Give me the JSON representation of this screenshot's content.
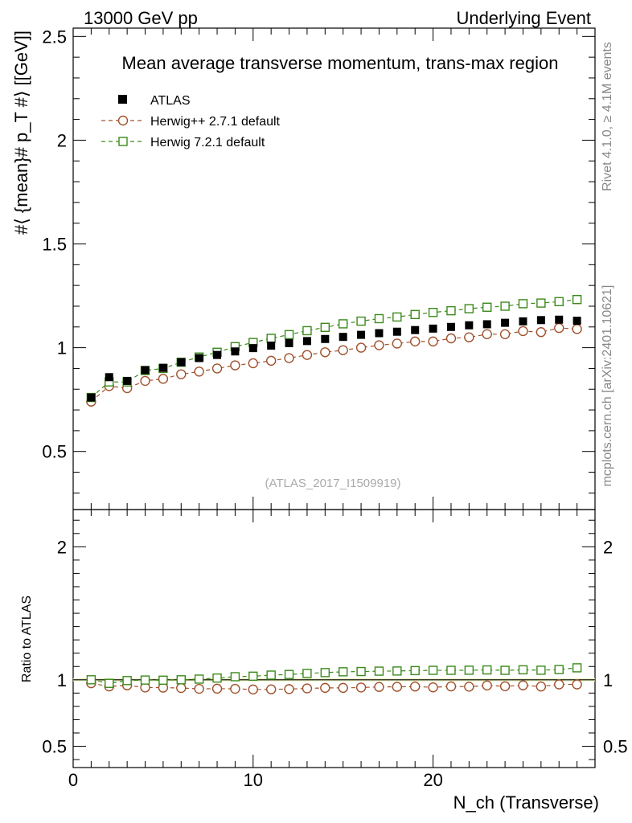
{
  "header": {
    "left": "13000 GeV pp",
    "right": "Underlying Event"
  },
  "side": {
    "rivet": "Rivet 4.1.0, ≥ 4.1M events",
    "mcplots": "mcplots.cern.ch [arXiv:2401.10621]"
  },
  "chart_data": [
    {
      "type": "scatter",
      "panel": "main",
      "title": "Mean average transverse momentum, trans-max region",
      "analysis_label": "(ATLAS_2017_I1509919)",
      "ylabel": "#⟨ {mean}# p_T #⟩ [[GeV]]",
      "xlim": [
        0,
        29
      ],
      "ylim": [
        0.22,
        2.54
      ],
      "yticks": [
        0.5,
        1,
        1.5,
        2,
        2.5
      ],
      "yticklabels": [
        "0.5",
        "1",
        "1.5",
        "2",
        "2.5"
      ],
      "x": [
        1,
        2,
        3,
        4,
        5,
        6,
        7,
        8,
        9,
        10,
        11,
        12,
        13,
        14,
        15,
        16,
        17,
        18,
        19,
        20,
        21,
        22,
        23,
        24,
        25,
        26,
        27,
        28
      ],
      "legend": [
        "ATLAS",
        "Herwig++ 2.7.1 default",
        "Herwig 7.2.1 default"
      ],
      "series": [
        {
          "name": "ATLAS",
          "color": "#000000",
          "marker": "filled-square",
          "values": [
            0.76,
            0.858,
            0.84,
            0.892,
            0.903,
            0.93,
            0.95,
            0.965,
            0.982,
            0.998,
            1.01,
            1.022,
            1.032,
            1.042,
            1.052,
            1.062,
            1.07,
            1.077,
            1.085,
            1.092,
            1.1,
            1.108,
            1.113,
            1.12,
            1.127,
            1.133,
            1.135,
            1.13
          ]
        },
        {
          "name": "Herwig++ 2.7.1 default",
          "color": "#a0522d",
          "marker": "open-circle",
          "values": [
            0.74,
            0.815,
            0.805,
            0.84,
            0.85,
            0.872,
            0.885,
            0.9,
            0.915,
            0.925,
            0.937,
            0.95,
            0.965,
            0.978,
            0.988,
            1.0,
            1.012,
            1.02,
            1.03,
            1.03,
            1.045,
            1.05,
            1.065,
            1.065,
            1.08,
            1.075,
            1.095,
            1.09
          ]
        },
        {
          "name": "Herwig 7.2.1 default",
          "color": "#3a8a1a",
          "marker": "open-square",
          "values": [
            0.76,
            0.835,
            0.835,
            0.89,
            0.9,
            0.93,
            0.955,
            0.978,
            1.005,
            1.025,
            1.045,
            1.063,
            1.082,
            1.098,
            1.115,
            1.128,
            1.14,
            1.148,
            1.16,
            1.17,
            1.178,
            1.188,
            1.195,
            1.2,
            1.212,
            1.215,
            1.222,
            1.232
          ]
        }
      ]
    },
    {
      "type": "scatter",
      "panel": "ratio",
      "ylabel": "Ratio to ATLAS",
      "xlabel": "N_ch (Transverse)",
      "xlim": [
        0,
        29
      ],
      "ylim": [
        0.34,
        2.28
      ],
      "xticks": [
        0,
        10,
        20
      ],
      "xticklabels": [
        "0",
        "10",
        "20"
      ],
      "yticks": [
        0.5,
        1,
        2
      ],
      "yticklabels": [
        "0.5",
        "1",
        "2"
      ],
      "x": [
        1,
        2,
        3,
        4,
        5,
        6,
        7,
        8,
        9,
        10,
        11,
        12,
        13,
        14,
        15,
        16,
        17,
        18,
        19,
        20,
        21,
        22,
        23,
        24,
        25,
        26,
        27,
        28
      ],
      "series": [
        {
          "name": "Herwig++ 2.7.1 default",
          "color": "#a0522d",
          "marker": "open-circle",
          "values": [
            0.974,
            0.95,
            0.958,
            0.942,
            0.941,
            0.938,
            0.932,
            0.933,
            0.932,
            0.927,
            0.928,
            0.93,
            0.935,
            0.939,
            0.939,
            0.942,
            0.946,
            0.947,
            0.949,
            0.943,
            0.95,
            0.948,
            0.957,
            0.951,
            0.958,
            0.949,
            0.965,
            0.965
          ]
        },
        {
          "name": "Herwig 7.2.1 default",
          "color": "#3a8a1a",
          "marker": "open-square",
          "values": [
            1.0,
            0.973,
            0.994,
            0.998,
            0.997,
            1.0,
            1.005,
            1.013,
            1.023,
            1.027,
            1.035,
            1.04,
            1.048,
            1.054,
            1.06,
            1.062,
            1.065,
            1.066,
            1.069,
            1.071,
            1.071,
            1.072,
            1.074,
            1.071,
            1.075,
            1.072,
            1.077,
            1.09
          ]
        }
      ]
    }
  ]
}
